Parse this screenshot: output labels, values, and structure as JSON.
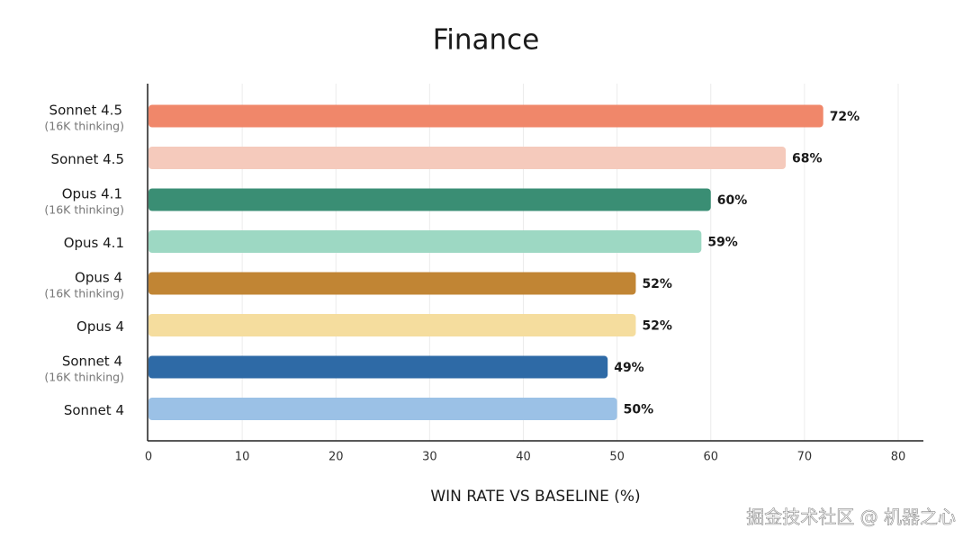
{
  "chart_data": {
    "type": "barh",
    "title": "Finance",
    "categories": [
      {
        "name": "Sonnet 4.5",
        "note": "(16K thinking)"
      },
      {
        "name": "Sonnet 4.5"
      },
      {
        "name": "Opus 4.1",
        "note": "(16K thinking)"
      },
      {
        "name": "Opus 4.1"
      },
      {
        "name": "Opus 4",
        "note": "(16K thinking)"
      },
      {
        "name": "Opus 4"
      },
      {
        "name": "Sonnet 4",
        "note": "(16K thinking)"
      },
      {
        "name": "Sonnet 4"
      }
    ],
    "values": [
      72,
      68,
      60,
      59,
      52,
      52,
      49,
      50
    ],
    "value_labels": [
      "72%",
      "68%",
      "60%",
      "59%",
      "52%",
      "52%",
      "49%",
      "50%"
    ],
    "colors": [
      "#f0876a",
      "#f5cabc",
      "#3a8e74",
      "#9dd8c3",
      "#c18534",
      "#f5dd9e",
      "#2e6aa6",
      "#9bc1e6"
    ],
    "xlim": [
      0,
      80
    ],
    "xticks": [
      0,
      10,
      20,
      30,
      40,
      50,
      60,
      70,
      80
    ],
    "xlabel": "WIN RATE VS BASELINE (%)",
    "grid": true,
    "watermark": "掘金技术社区 @ 机器之心"
  }
}
